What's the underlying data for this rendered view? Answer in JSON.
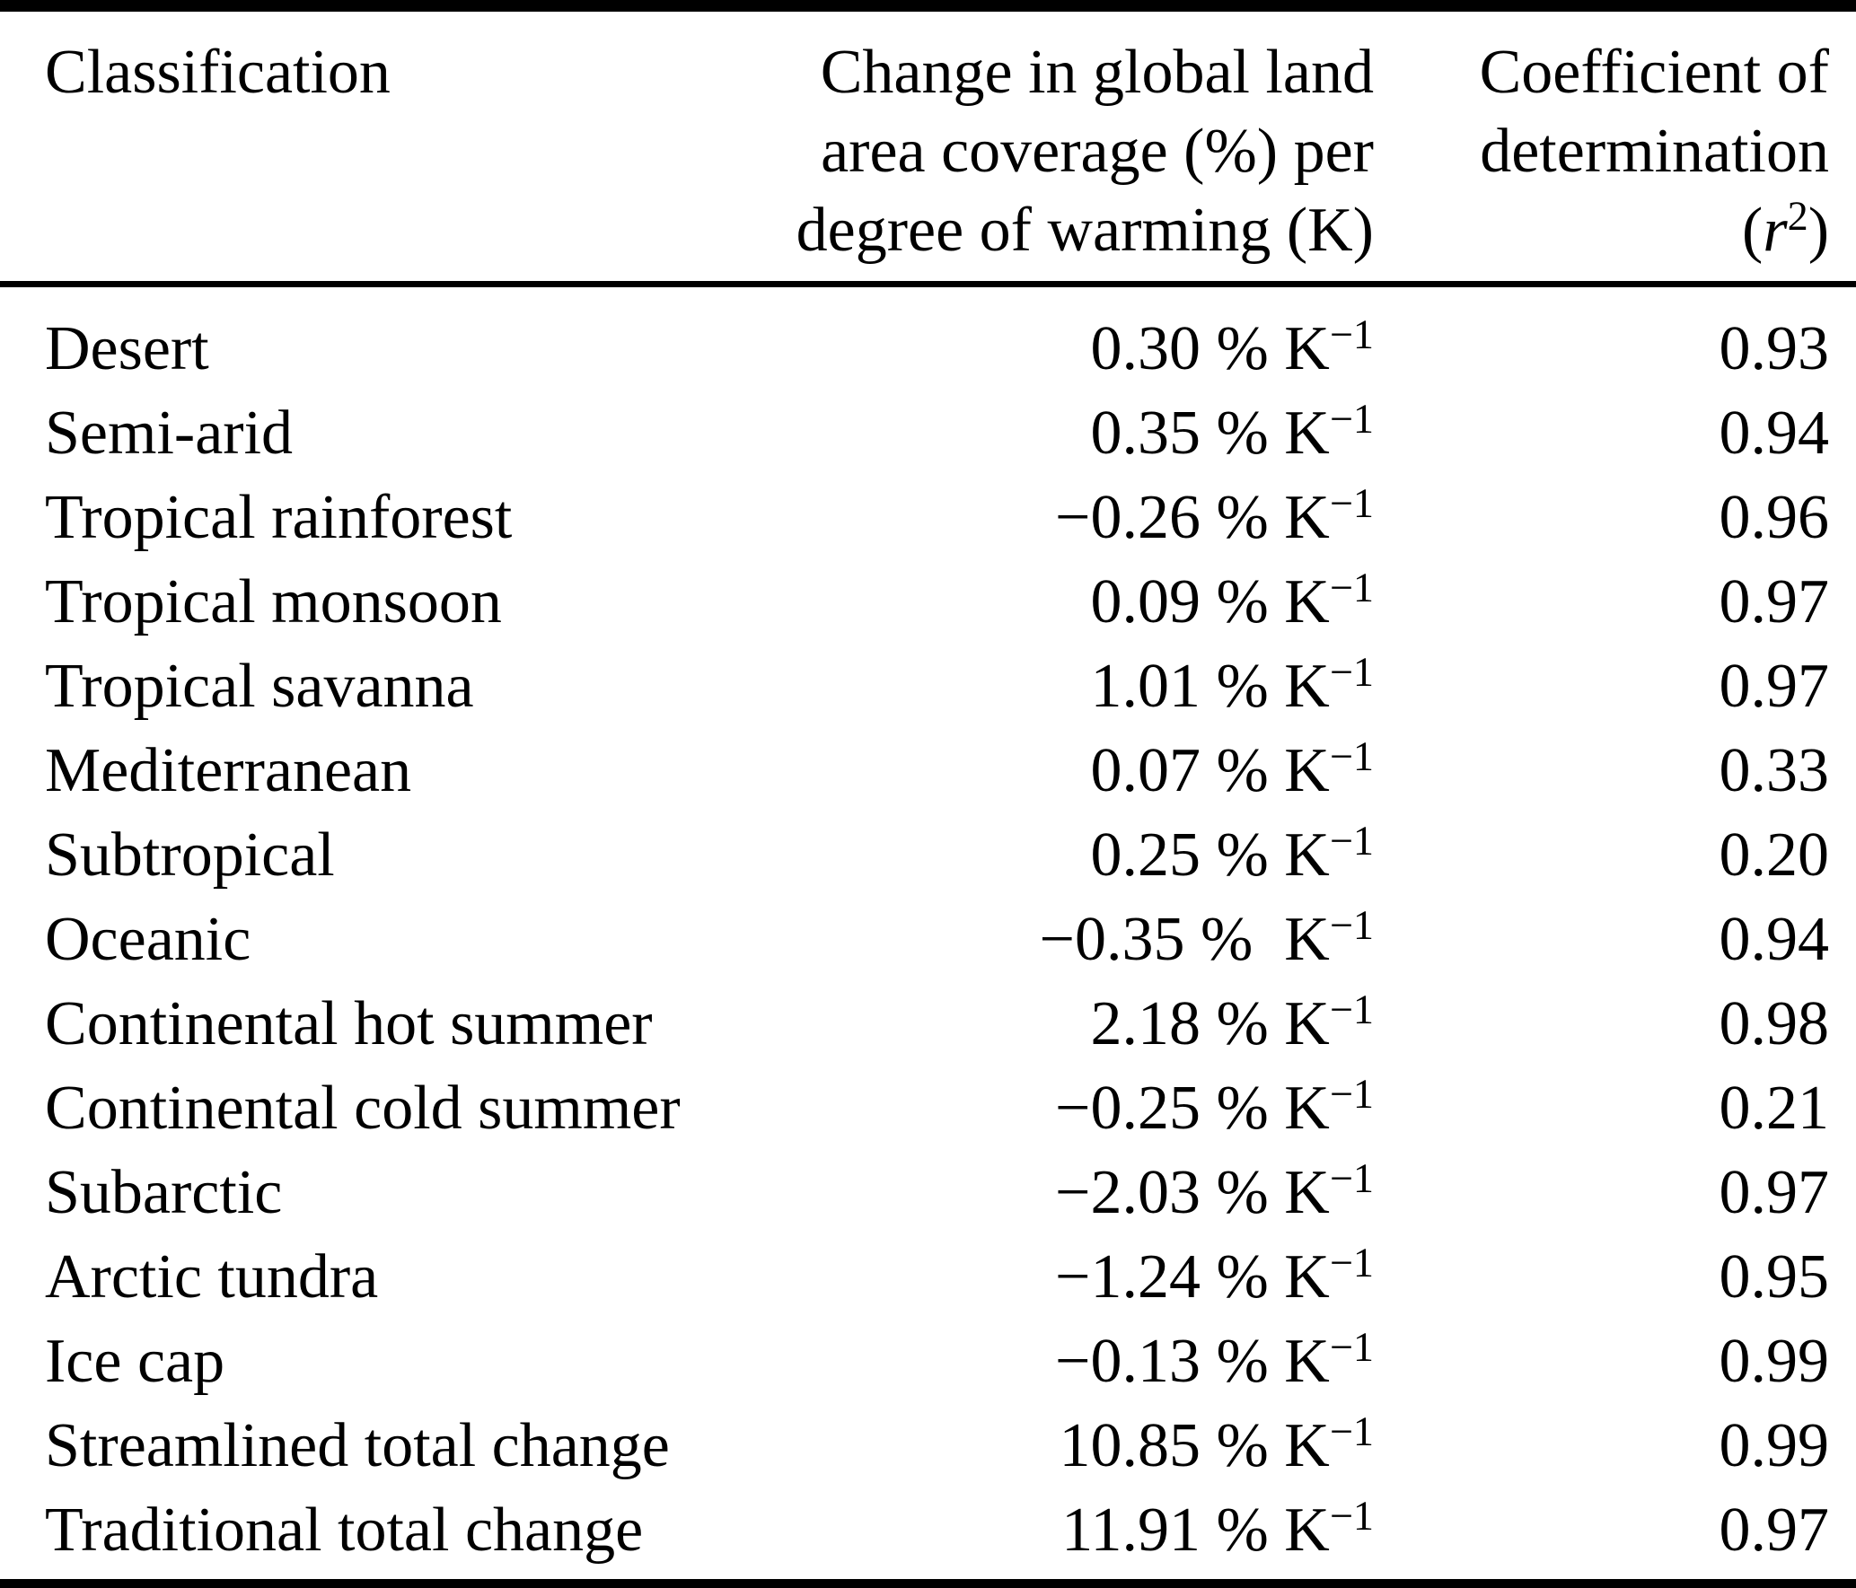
{
  "colors": {
    "background": "#ffffff",
    "text": "#000000",
    "rule": "#000000"
  },
  "table": {
    "header": {
      "col1": "Classification",
      "col2_lines": [
        "Change in global land",
        "area coverage (%) per",
        "degree of warming (K)"
      ],
      "col3_lines": [
        "Coefficient of",
        "determination"
      ],
      "col3_math": {
        "open": "(",
        "var": "r",
        "sup": "2",
        "close": ")"
      }
    },
    "value_sup": "−1",
    "rows": [
      {
        "label": "Desert",
        "value": "0.30 % K",
        "value_sup": "−1",
        "r2": "0.93"
      },
      {
        "label": "Semi-arid",
        "value": "0.35 % K",
        "value_sup": "−1",
        "r2": "0.94"
      },
      {
        "label": "Tropical rainforest",
        "value": "−0.26 % K",
        "value_sup": "−1",
        "r2": "0.96"
      },
      {
        "label": "Tropical monsoon",
        "value": "0.09 % K",
        "value_sup": "−1",
        "r2": "0.97"
      },
      {
        "label": "Tropical savanna",
        "value": "1.01 % K",
        "value_sup": "−1",
        "r2": "0.97"
      },
      {
        "label": "Mediterranean",
        "value": "0.07 % K",
        "value_sup": "−1",
        "r2": "0.33"
      },
      {
        "label": "Subtropical",
        "value": "0.25 % K",
        "value_sup": "−1",
        "r2": "0.20"
      },
      {
        "label": "Oceanic",
        "value": "−0.35 %  K",
        "value_sup": "−1",
        "r2": "0.94"
      },
      {
        "label": "Continental hot summer",
        "value": "2.18 % K",
        "value_sup": "−1",
        "r2": "0.98"
      },
      {
        "label": "Continental cold summer",
        "value": "−0.25 % K",
        "value_sup": "−1",
        "r2": "0.21"
      },
      {
        "label": "Subarctic",
        "value": "−2.03 % K",
        "value_sup": "−1",
        "r2": "0.97"
      },
      {
        "label": "Arctic tundra",
        "value": "−1.24 % K",
        "value_sup": "−1",
        "r2": "0.95"
      },
      {
        "label": "Ice cap",
        "value": "−0.13 % K",
        "value_sup": "−1",
        "r2": "0.99"
      },
      {
        "label": "Streamlined total change",
        "value": "10.85 % K",
        "value_sup": "−1",
        "r2": "0.99"
      },
      {
        "label": "Traditional total change",
        "value": "11.91 % K",
        "value_sup": "−1",
        "r2": "0.97"
      }
    ]
  },
  "chart_data": {
    "type": "table",
    "title": "",
    "columns": [
      "Classification",
      "Change in global land area coverage (%) per degree of warming (K)",
      "Coefficient of determination (r²)"
    ],
    "rows": [
      [
        "Desert",
        "0.30 % K⁻¹",
        0.93
      ],
      [
        "Semi-arid",
        "0.35 % K⁻¹",
        0.94
      ],
      [
        "Tropical rainforest",
        "−0.26 % K⁻¹",
        0.96
      ],
      [
        "Tropical monsoon",
        "0.09 % K⁻¹",
        0.97
      ],
      [
        "Tropical savanna",
        "1.01 % K⁻¹",
        0.97
      ],
      [
        "Mediterranean",
        "0.07 % K⁻¹",
        0.33
      ],
      [
        "Subtropical",
        "0.25 % K⁻¹",
        0.2
      ],
      [
        "Oceanic",
        "−0.35 % K⁻¹",
        0.94
      ],
      [
        "Continental hot summer",
        "2.18 % K⁻¹",
        0.98
      ],
      [
        "Continental cold summer",
        "−0.25 % K⁻¹",
        0.21
      ],
      [
        "Subarctic",
        "−2.03 % K⁻¹",
        0.97
      ],
      [
        "Arctic tundra",
        "−1.24 % K⁻¹",
        0.95
      ],
      [
        "Ice cap",
        "−0.13 % K⁻¹",
        0.99
      ],
      [
        "Streamlined total change",
        "10.85 % K⁻¹",
        0.99
      ],
      [
        "Traditional total change",
        "11.91 % K⁻¹",
        0.97
      ]
    ]
  }
}
